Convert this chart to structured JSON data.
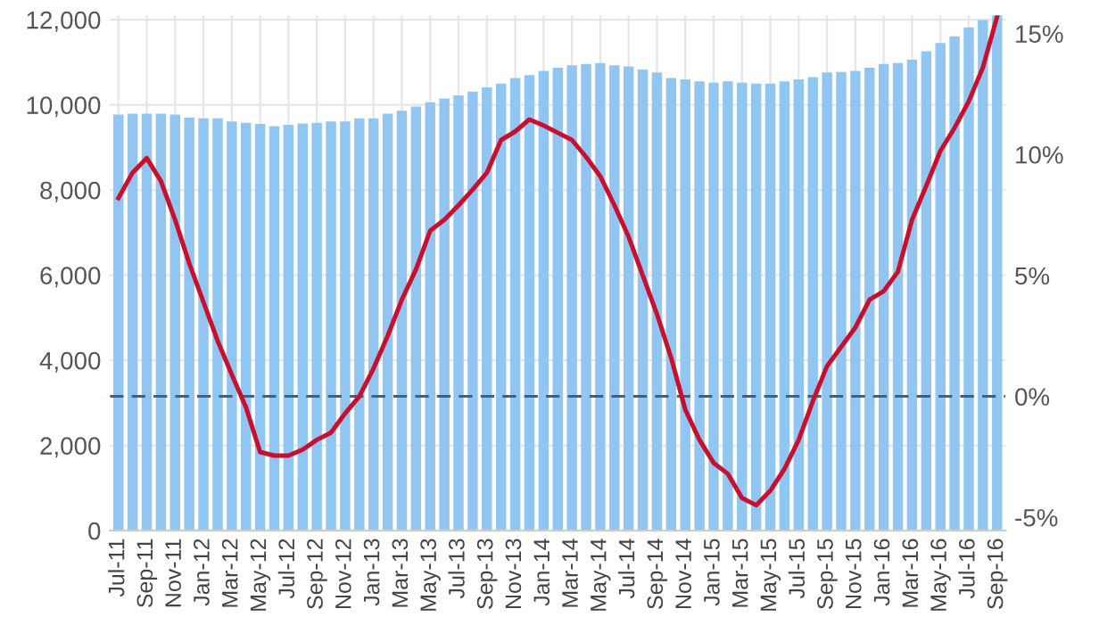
{
  "chart_data": {
    "type": "bar",
    "categories": [
      "Jul-11",
      null,
      "Sep-11",
      null,
      "Nov-11",
      null,
      "Jan-12",
      null,
      "Mar-12",
      null,
      "May-12",
      null,
      "Jul-12",
      null,
      "Sep-12",
      null,
      "Nov-12",
      null,
      "Jan-13",
      null,
      "Mar-13",
      null,
      "May-13",
      null,
      "Jul-13",
      null,
      "Sep-13",
      null,
      "Nov-13",
      null,
      "Jan-14",
      null,
      "Mar-14",
      null,
      "May-14",
      null,
      "Jul-14",
      null,
      "Sep-14",
      null,
      "Nov-14",
      null,
      "Jan-15",
      null,
      "Mar-15",
      null,
      "May-15",
      null,
      "Jul-15",
      null,
      "Sep-15",
      null,
      "Nov-15",
      null,
      "Jan-16",
      null,
      "Mar-16",
      null,
      "May-16",
      null,
      "Jul-16",
      null,
      "Sep-16"
    ],
    "series": [
      {
        "color": "#92c6f2",
        "values": [
          9770,
          9790,
          9790,
          9790,
          9770,
          9700,
          9680,
          9680,
          9610,
          9580,
          9550,
          9500,
          9530,
          9560,
          9580,
          9610,
          9610,
          9680,
          9680,
          9790,
          9860,
          9960,
          10060,
          10150,
          10220,
          10310,
          10410,
          10500,
          10630,
          10700,
          10800,
          10870,
          10930,
          10960,
          10980,
          10930,
          10900,
          10830,
          10760,
          10630,
          10600,
          10550,
          10520,
          10550,
          10520,
          10500,
          10500,
          10550,
          10600,
          10650,
          10760,
          10770,
          10800,
          10870,
          10960,
          10980,
          11060,
          11260,
          11450,
          11610,
          11820,
          11990,
          12100
        ]
      },
      {
        "type": "line",
        "axis": "y2",
        "color": "#c8102e",
        "values": [
          8.2,
          9.25,
          9.85,
          8.9,
          7.3,
          5.5,
          3.9,
          2.3,
          0.9,
          -0.45,
          -2.3,
          -2.45,
          -2.45,
          -2.2,
          -1.8,
          -1.5,
          -0.7,
          0.0,
          1.15,
          2.5,
          4.0,
          5.25,
          6.85,
          7.3,
          7.9,
          8.55,
          9.25,
          10.6,
          10.95,
          11.45,
          11.2,
          10.9,
          10.6,
          9.9,
          9.1,
          7.9,
          6.6,
          5.0,
          3.4,
          1.6,
          -0.55,
          -1.8,
          -2.75,
          -3.2,
          -4.2,
          -4.5,
          -3.9,
          -3.0,
          -1.8,
          -0.2,
          1.25,
          2.05,
          2.85,
          4.0,
          4.35,
          5.15,
          7.3,
          8.7,
          10.15,
          11.1,
          12.2,
          13.6,
          15.7
        ]
      }
    ],
    "ylim": [
      0,
      12100
    ],
    "yticks": [
      0,
      {
        "value": 2000,
        "label": "2,000"
      },
      {
        "value": 4000,
        "label": "4,000"
      },
      {
        "value": 6000,
        "label": "6,000"
      },
      {
        "value": 8000,
        "label": "8,000"
      },
      {
        "value": 10000,
        "label": "10,000"
      },
      {
        "value": 12000,
        "label": "12,000"
      }
    ],
    "y2lim": [
      -5.55,
      15.75
    ],
    "y2ticks": [
      {
        "value": -5,
        "label": "-5%"
      },
      {
        "value": 0,
        "label": "0%"
      },
      {
        "value": 5,
        "label": "5%"
      },
      {
        "value": 10,
        "label": "10%"
      },
      {
        "value": 15,
        "label": "15%"
      }
    ],
    "ref_lines": [
      {
        "axis": "y2",
        "value": 0,
        "color": "#4a5d78",
        "line_style": "dashed"
      }
    ],
    "grid": true
  }
}
